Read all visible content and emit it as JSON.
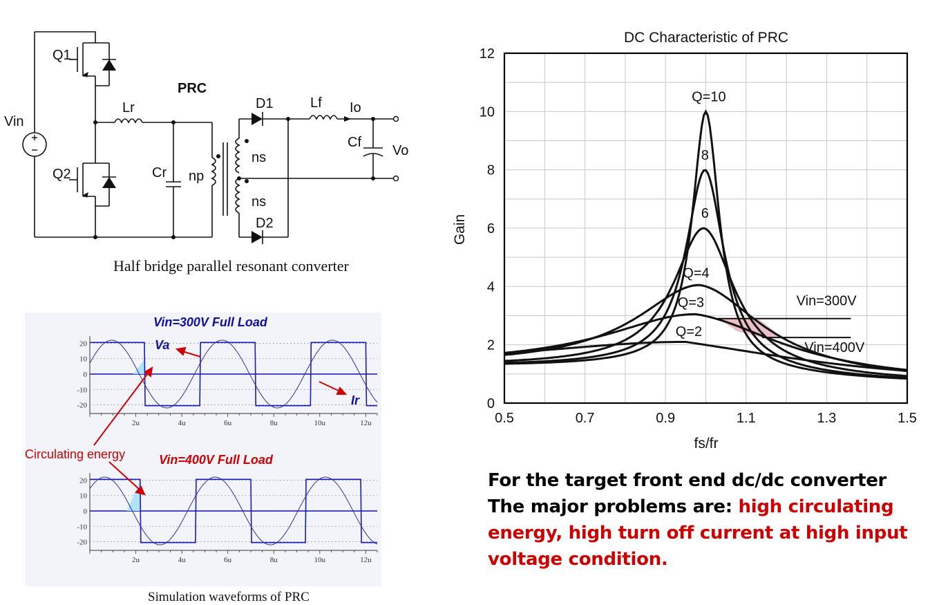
{
  "circuit": {
    "caption": "Half bridge parallel resonant converter",
    "labels": {
      "title": "PRC",
      "vin": "Vin",
      "q1": "Q1",
      "q2": "Q2",
      "lr": "Lr",
      "cr": "Cr",
      "np": "np",
      "ns_top": "ns",
      "ns_bottom": "ns",
      "d1": "D1",
      "d2": "D2",
      "lf": "Lf",
      "io": "Io",
      "cf": "Cf",
      "vo": "Vo"
    }
  },
  "waveforms": {
    "caption": "Simulation waveforms of PRC",
    "top_title": "Vin=300V Full Load",
    "bottom_title": "Vin=400V Full Load",
    "va_label": "Va",
    "ir_label": "Ir",
    "annotation": "Circulating energy",
    "y_ticks": [
      "20",
      "10",
      "0",
      "-10",
      "-20"
    ],
    "x_ticks": [
      "2u",
      "4u",
      "6u",
      "8u",
      "10u",
      "12u"
    ]
  },
  "chart_data": {
    "type": "line",
    "title": "DC Characteristic of PRC",
    "xlabel": "fs/fr",
    "ylabel": "Gain",
    "xlim": [
      0.5,
      1.5
    ],
    "ylim": [
      0,
      12
    ],
    "x_ticks": [
      "0.5",
      "0.7",
      "0.9",
      "1.1",
      "1.3",
      "1.5"
    ],
    "y_ticks": [
      "0",
      "2",
      "4",
      "6",
      "8",
      "10",
      "12"
    ],
    "grid": true,
    "series": [
      {
        "label": "Q=2",
        "peak_x": 0.95,
        "peak": 2.1,
        "k": 4.2
      },
      {
        "label": "Q=3",
        "peak_x": 0.975,
        "peak": 3.05,
        "k": 9
      },
      {
        "label": "Q=4",
        "peak_x": 0.985,
        "peak": 4.05,
        "k": 14
      },
      {
        "label": "6",
        "peak_x": 0.995,
        "peak": 6.0,
        "k": 40
      },
      {
        "label": "8",
        "peak_x": 0.998,
        "peak": 8.0,
        "k": 75
      },
      {
        "label": "Q=10",
        "peak_x": 1.0,
        "peak": 10.0,
        "k": 120
      }
    ],
    "reference_lines": [
      {
        "label": "Vin=300V",
        "y": 2.9,
        "x_start": 1.03,
        "x_end": 1.36
      },
      {
        "label": "Vin=400V",
        "y": 2.25,
        "x_start": 1.14,
        "x_end": 1.36
      }
    ]
  },
  "conclusion": {
    "line1": "For the target front end dc/dc converter",
    "line2_black": "The major problems are: ",
    "line2_red": "high circulating energy, high turn off current at high input voltage condition."
  }
}
